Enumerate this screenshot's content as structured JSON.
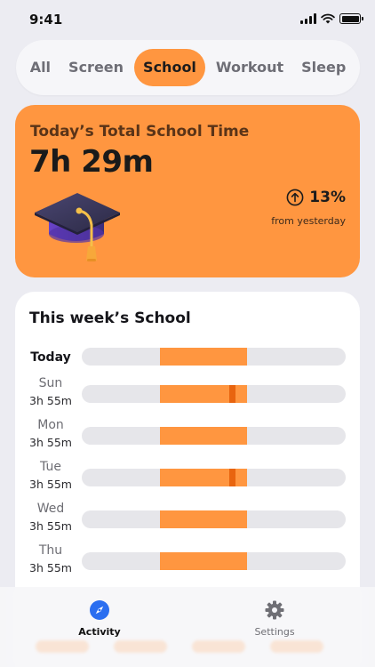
{
  "status": {
    "time": "9:41"
  },
  "tabs": [
    {
      "label": "All",
      "active": false
    },
    {
      "label": "Screen",
      "active": false
    },
    {
      "label": "School",
      "active": true
    },
    {
      "label": "Workout",
      "active": false
    },
    {
      "label": "Sleep",
      "active": false
    }
  ],
  "hero": {
    "title": "Today’s Total School Time",
    "value": "7h 29m",
    "change_pct": "13%",
    "change_label": "from yesterday",
    "icon": "graduation-cap-icon"
  },
  "week": {
    "title": "This week’s School",
    "rows": [
      {
        "day": "Today",
        "duration": "",
        "start": 0.295,
        "end": 0.625,
        "mark": null
      },
      {
        "day": "Sun",
        "duration": "3h 55m",
        "start": 0.295,
        "end": 0.625,
        "mark": 0.56
      },
      {
        "day": "Mon",
        "duration": "3h 55m",
        "start": 0.295,
        "end": 0.625,
        "mark": null
      },
      {
        "day": "Tue",
        "duration": "3h 55m",
        "start": 0.295,
        "end": 0.625,
        "mark": 0.56
      },
      {
        "day": "Wed",
        "duration": "3h 55m",
        "start": 0.295,
        "end": 0.625,
        "mark": null
      },
      {
        "day": "Thu",
        "duration": "3h 55m",
        "start": 0.295,
        "end": 0.625,
        "mark": null
      }
    ]
  },
  "colors": {
    "accent": "#ff9640",
    "accent_dark": "#e8640f",
    "track": "#e6e6ea"
  },
  "tabbar": [
    {
      "label": "Activity",
      "icon": "compass-icon",
      "active": true
    },
    {
      "label": "Settings",
      "icon": "gear-icon",
      "active": false
    }
  ]
}
